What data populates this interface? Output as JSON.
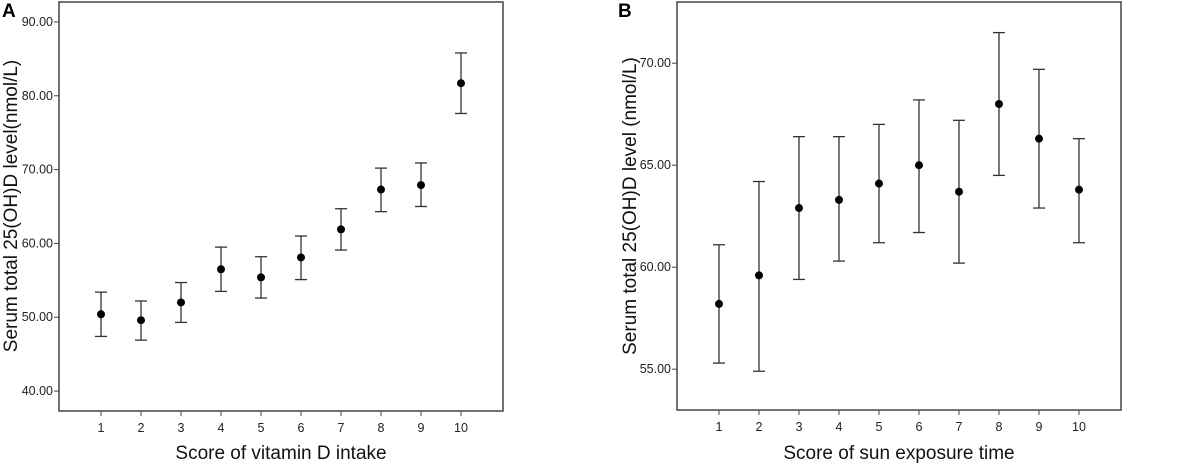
{
  "chart_data": [
    {
      "type": "scatter",
      "panel_label": "A",
      "xlabel": "Score of vitamin D intake",
      "ylabel": "Serum total 25(OH)D level(nmol/L)",
      "x": [
        1,
        2,
        3,
        4,
        5,
        6,
        7,
        8,
        9,
        10
      ],
      "y": [
        50.4,
        49.6,
        52.0,
        56.5,
        55.4,
        58.1,
        61.9,
        67.3,
        67.9,
        81.7
      ],
      "error_low": [
        47.4,
        46.9,
        49.3,
        53.5,
        52.6,
        55.1,
        59.1,
        64.3,
        65.0,
        77.6
      ],
      "error_high": [
        53.4,
        52.2,
        54.7,
        59.5,
        58.2,
        61.0,
        64.7,
        70.2,
        70.9,
        85.8
      ],
      "yticks": [
        "40.00",
        "50.00",
        "60.00",
        "70.00",
        "80.00",
        "90.00"
      ],
      "xticks": [
        "1",
        "2",
        "3",
        "4",
        "5",
        "6",
        "7",
        "8",
        "9",
        "10"
      ],
      "xlim": [
        -0.05,
        11.05
      ],
      "ylim": [
        37.3,
        92.7
      ],
      "grid": false,
      "marker_color": "#000000",
      "errorbar_color": "#333333"
    },
    {
      "type": "scatter",
      "panel_label": "B",
      "xlabel": "Score of sun exposure time",
      "ylabel": "Serum total 25(OH)D level (nmol/L)",
      "x": [
        1,
        2,
        3,
        4,
        5,
        6,
        7,
        8,
        9,
        10
      ],
      "y": [
        58.2,
        59.6,
        62.9,
        63.3,
        64.1,
        65.0,
        63.7,
        68.0,
        66.3,
        63.8
      ],
      "error_low": [
        55.3,
        54.9,
        59.4,
        60.3,
        61.2,
        61.7,
        60.2,
        64.5,
        62.9,
        61.2
      ],
      "error_high": [
        61.1,
        64.2,
        66.4,
        66.4,
        67.0,
        68.2,
        67.2,
        71.5,
        69.7,
        66.3
      ],
      "yticks": [
        "55.00",
        "60.00",
        "65.00",
        "70.00"
      ],
      "xticks": [
        "1",
        "2",
        "3",
        "4",
        "5",
        "6",
        "7",
        "8",
        "9",
        "10"
      ],
      "xlim": [
        -0.05,
        11.05
      ],
      "ylim": [
        53.0,
        73.0
      ],
      "grid": false,
      "marker_color": "#000000",
      "errorbar_color": "#333333"
    }
  ]
}
